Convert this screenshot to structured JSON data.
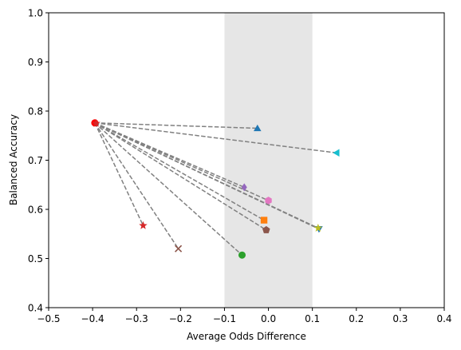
{
  "chart_data": {
    "type": "scatter",
    "title": "",
    "xlabel": "Average Odds Difference",
    "ylabel": "Balanced Accuracy",
    "xlim": [
      -0.5,
      0.4
    ],
    "ylim": [
      0.4,
      1.0
    ],
    "xticks": [
      -0.5,
      -0.4,
      -0.3,
      -0.2,
      -0.1,
      0.0,
      0.1,
      0.2,
      0.3,
      0.4
    ],
    "xtick_labels": [
      "−0.5",
      "−0.4",
      "−0.3",
      "−0.2",
      "−0.1",
      "0.0",
      "0.1",
      "0.2",
      "0.3",
      "0.4"
    ],
    "yticks": [
      0.4,
      0.5,
      0.6,
      0.7,
      0.8,
      0.9,
      1.0
    ],
    "ytick_labels": [
      "0.4",
      "0.5",
      "0.6",
      "0.7",
      "0.8",
      "0.9",
      "1.0"
    ],
    "grid": false,
    "shaded_band": {
      "x": [
        -0.1,
        0.1
      ],
      "color": "#e6e6e6"
    },
    "origin_point": {
      "x": -0.395,
      "y": 0.776,
      "color": "#ff0000",
      "marker": "circle"
    },
    "connector": {
      "style": "dashed",
      "color": "#808080"
    },
    "points": [
      {
        "x": -0.392,
        "y": 0.775,
        "color": "#d62728",
        "marker": "star"
      },
      {
        "x": -0.025,
        "y": 0.765,
        "color": "#1f77b4",
        "marker": "triangle-up"
      },
      {
        "x": 0.155,
        "y": 0.715,
        "color": "#17becf",
        "marker": "triangle-left"
      },
      {
        "x": -0.055,
        "y": 0.645,
        "color": "#9467bd",
        "marker": "diamond"
      },
      {
        "x": 0.0,
        "y": 0.618,
        "color": "#e377c2",
        "marker": "hexagon"
      },
      {
        "x": -0.01,
        "y": 0.578,
        "color": "#ff7f0e",
        "marker": "square"
      },
      {
        "x": -0.005,
        "y": 0.558,
        "color": "#8c564b",
        "marker": "pentagon"
      },
      {
        "x": 0.115,
        "y": 0.56,
        "color": "#1f77b4",
        "marker": "triangle-down"
      },
      {
        "x": 0.113,
        "y": 0.562,
        "color": "#bcbd22",
        "marker": "star"
      },
      {
        "x": -0.285,
        "y": 0.567,
        "color": "#d62728",
        "marker": "star"
      },
      {
        "x": -0.205,
        "y": 0.52,
        "color": "#8c564b",
        "marker": "x"
      },
      {
        "x": -0.06,
        "y": 0.507,
        "color": "#2ca02c",
        "marker": "circle"
      }
    ]
  }
}
